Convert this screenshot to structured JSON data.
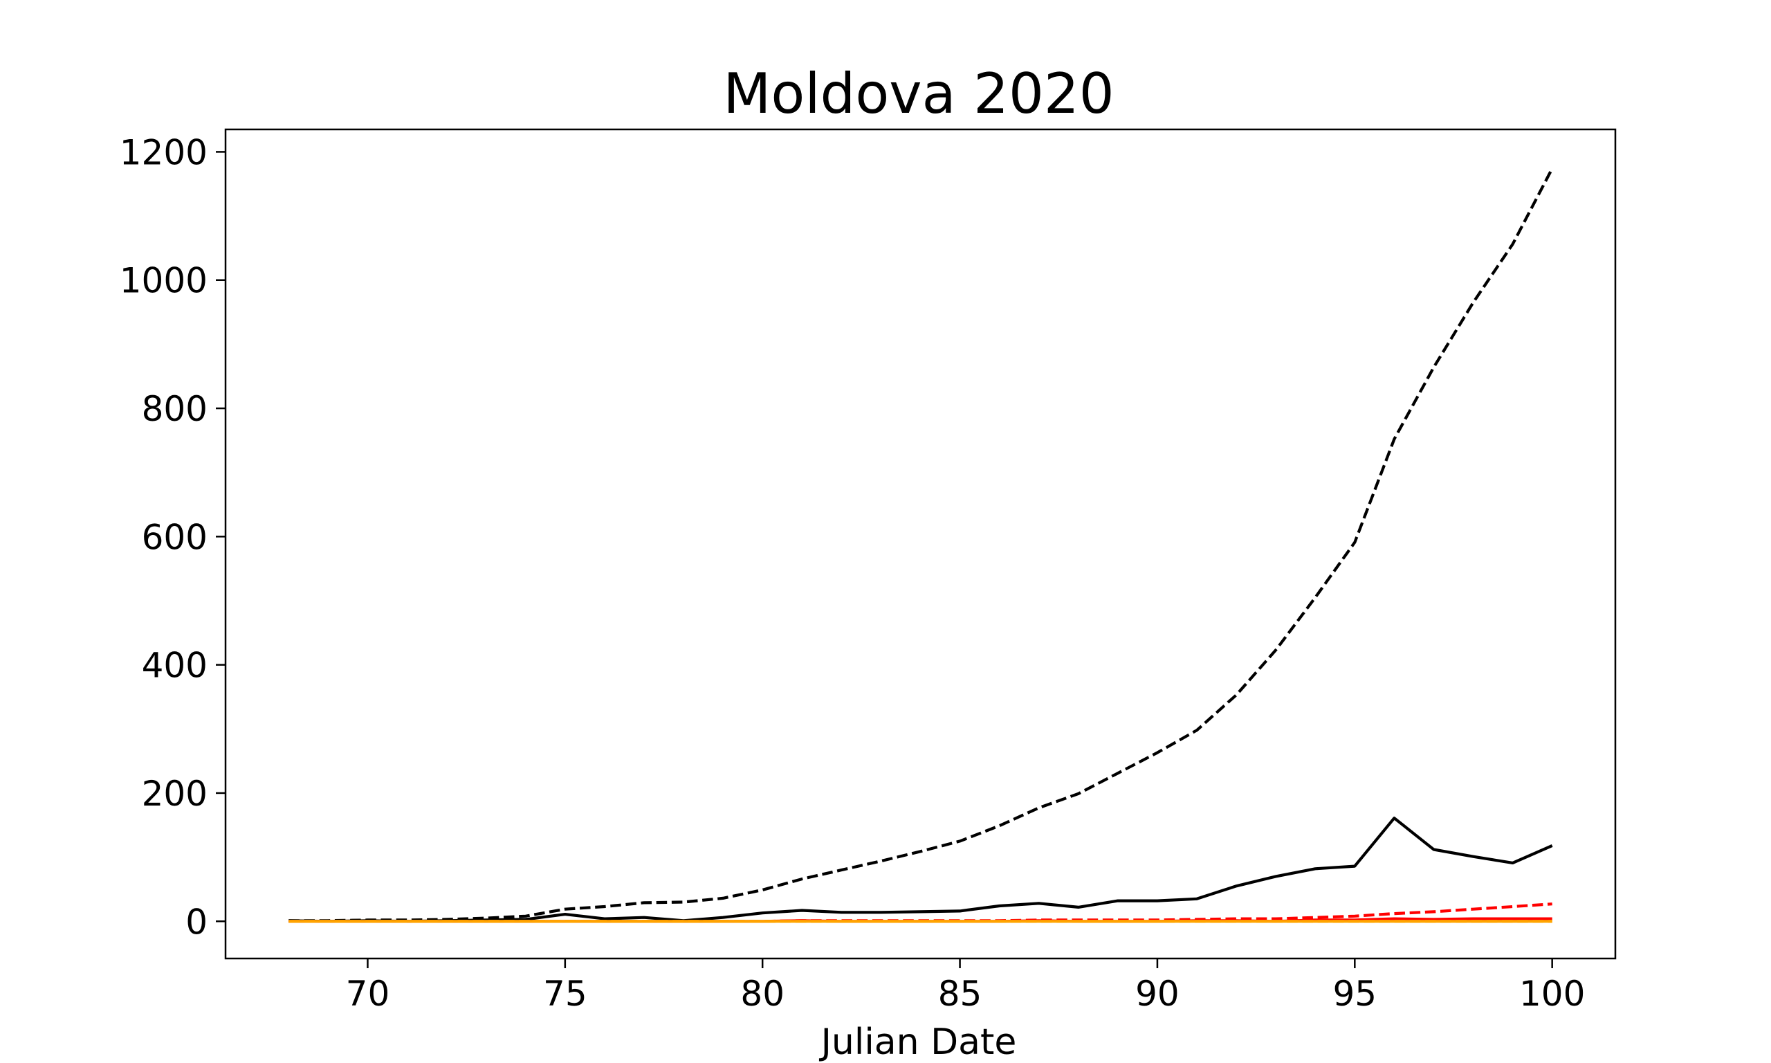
{
  "chart_data": {
    "type": "line",
    "title": "Moldova 2020",
    "xlabel": "Julian Date",
    "ylabel": "",
    "xlim": [
      66.4,
      101.6
    ],
    "ylim": [
      -58,
      1235
    ],
    "xticks": [
      70,
      75,
      80,
      85,
      90,
      95,
      100
    ],
    "yticks": [
      0,
      200,
      400,
      600,
      800,
      1000,
      1200
    ],
    "xtick_labels": [
      "70",
      "75",
      "80",
      "85",
      "90",
      "95",
      "100"
    ],
    "ytick_labels": [
      "0",
      "200",
      "400",
      "600",
      "800",
      "1000",
      "1200"
    ],
    "grid": false,
    "x": [
      68,
      69,
      70,
      71,
      72,
      73,
      74,
      75,
      76,
      77,
      78,
      79,
      80,
      81,
      82,
      83,
      84,
      85,
      86,
      87,
      88,
      89,
      90,
      91,
      92,
      93,
      94,
      95,
      96,
      97,
      98,
      99,
      100
    ],
    "series": [
      {
        "color": "#000000",
        "dash": "dashed",
        "values": [
          1,
          1,
          2,
          2,
          3,
          5,
          8,
          19,
          23,
          29,
          30,
          36,
          49,
          66,
          80,
          94,
          109,
          125,
          149,
          177,
          199,
          231,
          263,
          298,
          353,
          423,
          505,
          591,
          752,
          864,
          965,
          1056,
          1174
        ]
      },
      {
        "color": "#000000",
        "dash": "solid",
        "values": [
          1,
          0,
          1,
          0,
          1,
          2,
          3,
          11,
          4,
          6,
          1,
          6,
          13,
          17,
          14,
          14,
          15,
          16,
          24,
          28,
          22,
          32,
          32,
          35,
          55,
          70,
          82,
          86,
          161,
          112,
          101,
          91,
          118
        ]
      },
      {
        "color": "#ff0000",
        "dash": "dashed",
        "values": [
          0,
          0,
          0,
          0,
          0,
          0,
          0,
          0,
          0,
          0,
          0,
          0,
          0,
          1,
          1,
          1,
          1,
          1,
          1,
          2,
          2,
          2,
          2,
          3,
          4,
          4,
          6,
          8,
          12,
          15,
          19,
          23,
          27
        ]
      },
      {
        "color": "#ff0000",
        "dash": "solid",
        "values": [
          0,
          0,
          0,
          0,
          0,
          0,
          0,
          0,
          0,
          0,
          0,
          0,
          0,
          1,
          0,
          0,
          0,
          0,
          0,
          1,
          0,
          0,
          0,
          1,
          1,
          0,
          2,
          2,
          4,
          3,
          4,
          4,
          4
        ]
      },
      {
        "color": "#ffa500",
        "dash": "dashed",
        "values": [
          0,
          0,
          0,
          0,
          0,
          0,
          0,
          0,
          0,
          0,
          0,
          0,
          0,
          0,
          0,
          0,
          0,
          0,
          0,
          0,
          0,
          0,
          0,
          0,
          0,
          0,
          0,
          0,
          0,
          0,
          0,
          0,
          0
        ]
      },
      {
        "color": "#ffa500",
        "dash": "solid",
        "values": [
          0,
          0,
          0,
          0,
          0,
          0,
          0,
          0,
          0,
          0,
          0,
          0,
          0,
          0,
          0,
          0,
          0,
          0,
          0,
          0,
          0,
          0,
          0,
          0,
          0,
          0,
          0,
          0,
          0,
          0,
          0,
          0,
          0
        ]
      }
    ]
  }
}
